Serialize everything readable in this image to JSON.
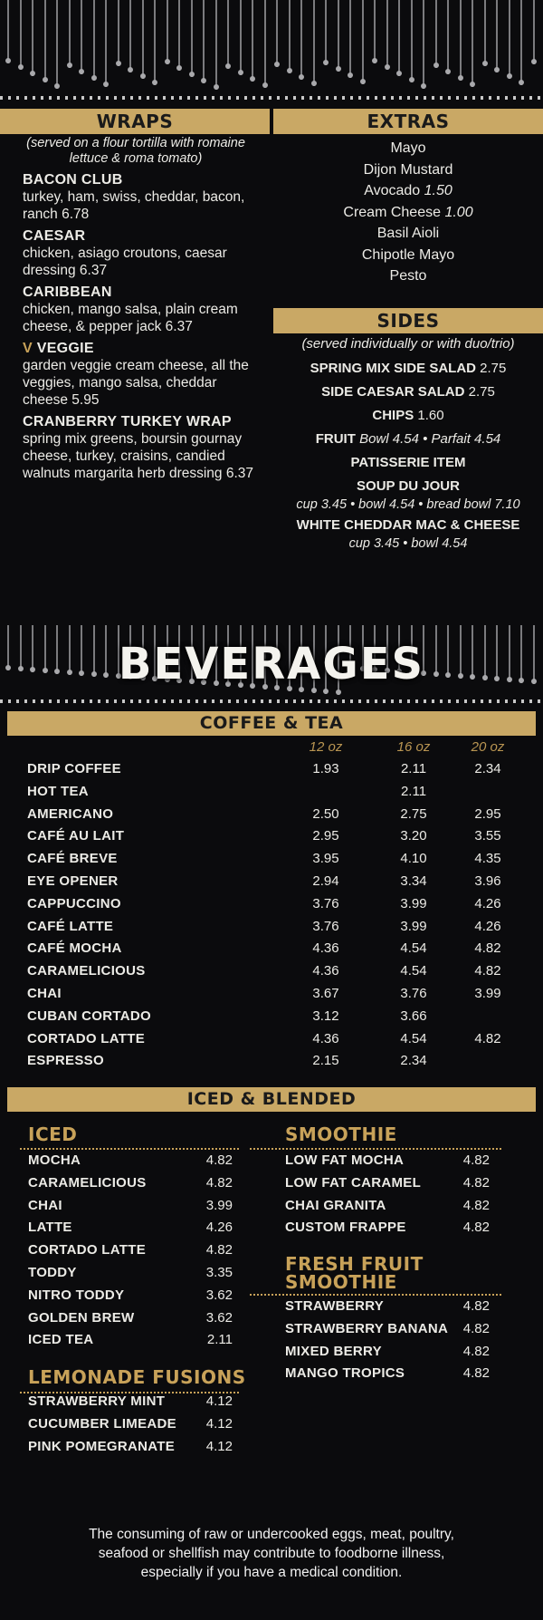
{
  "wraps": {
    "title": "WRAPS",
    "note": "(served on a flour tortilla with romaine lettuce & roma tomato)",
    "items": [
      {
        "prefix": "",
        "name": "BACON CLUB",
        "desc": "turkey, ham, swiss, cheddar, bacon, ranch  6.78"
      },
      {
        "prefix": "",
        "name": "CAESAR",
        "desc": "chicken, asiago croutons, caesar dressing  6.37"
      },
      {
        "prefix": "",
        "name": "CARIBBEAN",
        "desc": "chicken, mango salsa, plain cream cheese, & pepper jack  6.37"
      },
      {
        "prefix": "V",
        "name": "VEGGIE",
        "desc": "garden veggie cream cheese, all the veggies, mango salsa, cheddar cheese  5.95"
      },
      {
        "prefix": "",
        "name": "CRANBERRY TURKEY WRAP",
        "desc": "spring mix greens, boursin gournay cheese, turkey, craisins, candied walnuts margarita herb dressing  6.37"
      }
    ]
  },
  "extras": {
    "title": "EXTRAS",
    "items": [
      {
        "name": "Mayo",
        "price": ""
      },
      {
        "name": "Dijon Mustard",
        "price": ""
      },
      {
        "name": "Avocado",
        "price": "1.50"
      },
      {
        "name": "Cream Cheese",
        "price": "1.00"
      },
      {
        "name": "Basil Aioli",
        "price": ""
      },
      {
        "name": "Chipotle Mayo",
        "price": ""
      },
      {
        "name": "Pesto",
        "price": ""
      }
    ]
  },
  "sides": {
    "title": "SIDES",
    "note": "(served individually or with duo/trio)",
    "lines": [
      {
        "name": "SPRING MIX SIDE SALAD",
        "price": "2.75"
      },
      {
        "name": "SIDE CAESAR SALAD",
        "price": "2.75"
      },
      {
        "name": "CHIPS",
        "price": "1.60"
      },
      {
        "name": "FRUIT",
        "price": "Bowl 4.54 • Parfait 4.54"
      },
      {
        "name": "PATISSERIE ITEM",
        "price": ""
      },
      {
        "name": "SOUP DU JOUR",
        "price": ""
      },
      {
        "name": "",
        "price": "cup 3.45 • bowl 4.54 • bread bowl 7.10"
      },
      {
        "name": "WHITE CHEDDAR MAC & CHEESE",
        "price": ""
      },
      {
        "name": "",
        "price": "cup 3.45 • bowl 4.54"
      }
    ]
  },
  "beverages": {
    "title": "BEVERAGES",
    "coffee_title": "COFFEE & TEA",
    "sizes": [
      "12 oz",
      "16 oz",
      "20 oz"
    ],
    "coffee": [
      {
        "name": "DRIP COFFEE",
        "p": [
          "1.93",
          "2.11",
          "2.34"
        ]
      },
      {
        "name": "HOT TEA",
        "p": [
          "",
          "2.11",
          ""
        ]
      },
      {
        "name": "AMERICANO",
        "p": [
          "2.50",
          "2.75",
          "2.95"
        ]
      },
      {
        "name": "CAFÉ AU LAIT",
        "p": [
          "2.95",
          "3.20",
          "3.55"
        ]
      },
      {
        "name": "CAFÉ BREVE",
        "p": [
          "3.95",
          "4.10",
          "4.35"
        ]
      },
      {
        "name": "EYE OPENER",
        "p": [
          "2.94",
          "3.34",
          "3.96"
        ]
      },
      {
        "name": "CAPPUCCINO",
        "p": [
          "3.76",
          "3.99",
          "4.26"
        ]
      },
      {
        "name": "CAFÉ LATTE",
        "p": [
          "3.76",
          "3.99",
          "4.26"
        ]
      },
      {
        "name": "CAFÉ MOCHA",
        "p": [
          "4.36",
          "4.54",
          "4.82"
        ]
      },
      {
        "name": "CARAMELICIOUS",
        "p": [
          "4.36",
          "4.54",
          "4.82"
        ]
      },
      {
        "name": "CHAI",
        "p": [
          "3.67",
          "3.76",
          "3.99"
        ]
      },
      {
        "name": "CUBAN CORTADO",
        "p": [
          "3.12",
          "3.66",
          ""
        ]
      },
      {
        "name": "CORTADO LATTE",
        "p": [
          "4.36",
          "4.54",
          "4.82"
        ]
      },
      {
        "name": "ESPRESSO",
        "p": [
          "2.15",
          "2.34",
          ""
        ]
      }
    ],
    "iced_blended_title": "ICED & BLENDED",
    "iced": {
      "title": "ICED",
      "items": [
        {
          "name": "MOCHA",
          "price": "4.82"
        },
        {
          "name": "CARAMELICIOUS",
          "price": "4.82"
        },
        {
          "name": "CHAI",
          "price": "3.99"
        },
        {
          "name": "LATTE",
          "price": "4.26"
        },
        {
          "name": "CORTADO LATTE",
          "price": "4.82"
        },
        {
          "name": "TODDY",
          "price": "3.35"
        },
        {
          "name": "NITRO TODDY",
          "price": "3.62"
        },
        {
          "name": "GOLDEN BREW",
          "price": "3.62"
        },
        {
          "name": "ICED TEA",
          "price": "2.11"
        }
      ]
    },
    "lemonade": {
      "title": "LEMONADE FUSIONS",
      "items": [
        {
          "name": "STRAWBERRY MINT",
          "price": "4.12"
        },
        {
          "name": "CUCUMBER LIMEADE",
          "price": "4.12"
        },
        {
          "name": "PINK POMEGRANATE",
          "price": "4.12"
        }
      ]
    },
    "smoothie": {
      "title": "SMOOTHIE",
      "items": [
        {
          "name": "LOW FAT MOCHA",
          "price": "4.82"
        },
        {
          "name": "LOW FAT CARAMEL",
          "price": "4.82"
        },
        {
          "name": "CHAI GRANITA",
          "price": "4.82"
        },
        {
          "name": "CUSTOM FRAPPE",
          "price": "4.82"
        }
      ]
    },
    "fruit_smoothie": {
      "title_line1": "FRESH FRUIT",
      "title_line2": "SMOOTHIE",
      "items": [
        {
          "name": "STRAWBERRY",
          "price": "4.82"
        },
        {
          "name": "STRAWBERRY BANANA",
          "price": "4.82"
        },
        {
          "name": "MIXED BERRY",
          "price": "4.82"
        },
        {
          "name": "MANGO TROPICS",
          "price": "4.82"
        }
      ]
    }
  },
  "disclaimer": "The consuming of raw or undercooked eggs, meat, poultry, seafood or shellfish may contribute to foodborne illness, especially if you have a medical condition."
}
